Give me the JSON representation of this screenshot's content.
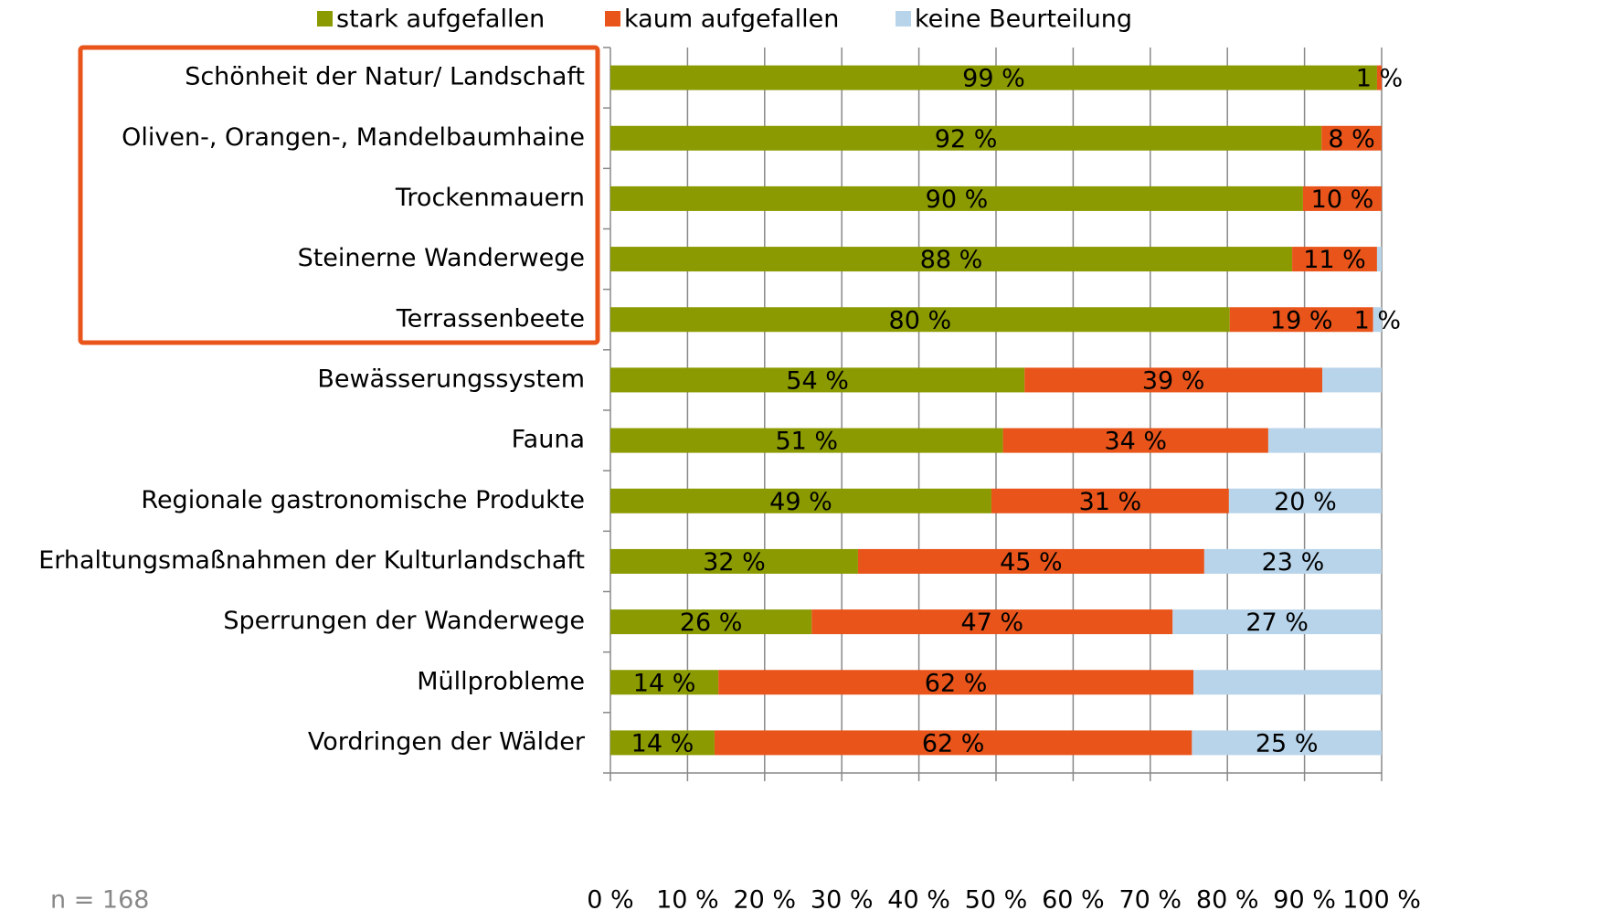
{
  "chart_data": {
    "type": "stacked_barh",
    "categories": [
      "Schönheit der Natur/ Landschaft",
      "Oliven-, Orangen-, Mandelbaumhaine",
      "Trockenmauern",
      "Steinerne Wanderwege",
      "Terrassenbeete",
      "Bewässerungssystem",
      "Fauna",
      "Regionale gastronomische Produkte",
      "Erhaltungsmaßnahmen der Kulturlandschaft",
      "Sperrungen der Wanderwege",
      "Müllprobleme",
      "Vordringen der Wälder"
    ],
    "series": [
      {
        "name": "stark aufgefallen",
        "color": "#8a9a00",
        "values": [
          99.4,
          92.2,
          89.8,
          88.4,
          80.3,
          53.7,
          50.9,
          49.4,
          32.1,
          26.1,
          14.0,
          13.5
        ],
        "value_labels": [
          "99 %",
          "92 %",
          "90 %",
          "88 %",
          "80 %",
          "54 %",
          "51 %",
          "49 %",
          "32 %",
          "26 %",
          "14 %",
          "14 %"
        ]
      },
      {
        "name": "kaum aufgefallen",
        "color": "#e8541a",
        "values": [
          0.6,
          7.8,
          10.2,
          11.0,
          18.6,
          38.6,
          34.4,
          30.8,
          44.9,
          46.8,
          61.6,
          61.9
        ],
        "value_labels": [
          "1 %",
          "8 %",
          "10 %",
          "11 %",
          "19 %",
          "39 %",
          "34 %",
          "31 %",
          "45 %",
          "47 %",
          "62 %",
          "62 %"
        ]
      },
      {
        "name": "keine Beurteilung",
        "color": "#b8d4ea",
        "values": [
          0,
          0,
          0,
          0.6,
          1.1,
          7.7,
          14.7,
          19.8,
          23.0,
          27.1,
          24.4,
          24.6
        ],
        "value_labels": [
          null,
          null,
          null,
          null,
          "1 %",
          null,
          null,
          "20 %",
          "23 %",
          "27 %",
          null,
          "25 %"
        ]
      }
    ],
    "xlim": [
      0,
      100
    ],
    "xticks": [
      {
        "value": 0,
        "label": "0 %"
      },
      {
        "value": 10,
        "label": "10 %"
      },
      {
        "value": 20,
        "label": "20 %"
      },
      {
        "value": 30,
        "label": "30 %"
      },
      {
        "value": 40,
        "label": "40 %"
      },
      {
        "value": 50,
        "label": "50 %"
      },
      {
        "value": 60,
        "label": "60 %"
      },
      {
        "value": 70,
        "label": "70 %"
      },
      {
        "value": 80,
        "label": "80 %"
      },
      {
        "value": 90,
        "label": "90 %"
      },
      {
        "value": 100,
        "label": "100 %"
      }
    ],
    "grid": true,
    "legend": "top",
    "note": "n = 168"
  }
}
